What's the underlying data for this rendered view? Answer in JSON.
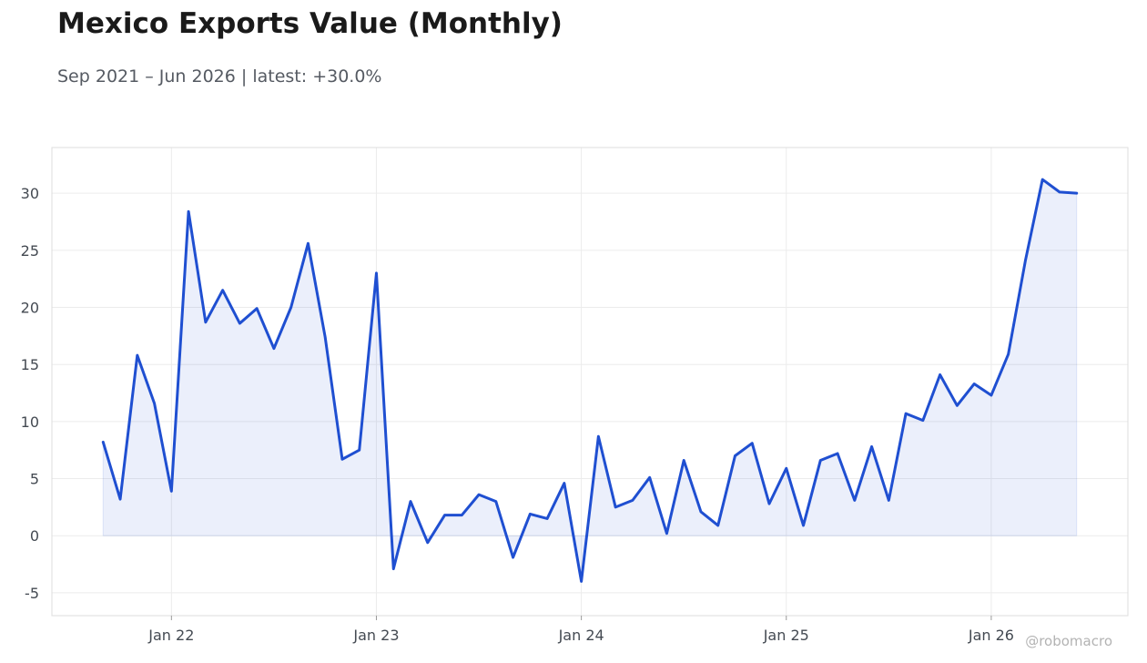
{
  "header": {
    "title": "Mexico Exports Value (Monthly)",
    "subtitle": "Sep 2021 – Jun 2026 | latest: +30.0%"
  },
  "watermark": "@robomacro",
  "colors": {
    "line": "#1f4fd1",
    "area_fill": "#1f4fd1",
    "grid": "#ececec",
    "frame": "#dddddd",
    "tick_text": "#444a52"
  },
  "chart_data": {
    "type": "area",
    "x_axis_type": "date",
    "y_ticks": [
      -5,
      0,
      5,
      10,
      15,
      20,
      25,
      30
    ],
    "x_ticks": [
      {
        "label": "Jan 22",
        "date": "2022-01"
      },
      {
        "label": "Jan 23",
        "date": "2023-01"
      },
      {
        "label": "Jan 24",
        "date": "2024-01"
      },
      {
        "label": "Jan 25",
        "date": "2025-01"
      },
      {
        "label": "Jan 26",
        "date": "2026-01"
      }
    ],
    "ylim": [
      -7,
      34
    ],
    "xlim": [
      "2021-06",
      "2026-09"
    ],
    "grid": true,
    "legend": false,
    "series": [
      {
        "x": [
          "2021-09",
          "2021-10",
          "2021-11",
          "2021-12",
          "2022-01",
          "2022-02",
          "2022-03",
          "2022-04",
          "2022-05",
          "2022-06",
          "2022-07",
          "2022-08",
          "2022-09",
          "2022-10",
          "2022-11",
          "2022-12",
          "2023-01",
          "2023-02",
          "2023-03",
          "2023-04",
          "2023-05",
          "2023-06",
          "2023-07",
          "2023-08",
          "2023-09",
          "2023-10",
          "2023-11",
          "2023-12",
          "2024-01",
          "2024-02",
          "2024-03",
          "2024-04",
          "2024-05",
          "2024-06",
          "2024-07",
          "2024-08",
          "2024-09",
          "2024-10",
          "2024-11",
          "2024-12",
          "2025-01",
          "2025-02",
          "2025-03",
          "2025-04",
          "2025-05",
          "2025-06",
          "2025-07",
          "2025-08",
          "2025-09",
          "2025-10",
          "2025-11",
          "2025-12",
          "2026-01",
          "2026-02",
          "2026-03",
          "2026-04",
          "2026-05",
          "2026-06"
        ],
        "y": [
          8.2,
          3.2,
          15.8,
          11.6,
          3.9,
          28.4,
          18.7,
          21.5,
          18.6,
          19.9,
          16.4,
          20.0,
          25.6,
          17.4,
          6.7,
          7.5,
          23.0,
          -2.9,
          3.0,
          -0.6,
          1.8,
          1.8,
          3.6,
          3.0,
          -1.9,
          1.9,
          1.5,
          4.6,
          -4.0,
          8.7,
          2.5,
          3.1,
          5.1,
          0.2,
          6.6,
          2.1,
          0.9,
          7.0,
          8.1,
          2.8,
          5.9,
          0.9,
          6.6,
          7.2,
          3.1,
          7.8,
          3.1,
          10.7,
          10.1,
          14.1,
          11.4,
          13.3,
          12.3,
          15.9,
          24.1,
          31.2,
          30.1,
          30.0
        ]
      }
    ]
  }
}
